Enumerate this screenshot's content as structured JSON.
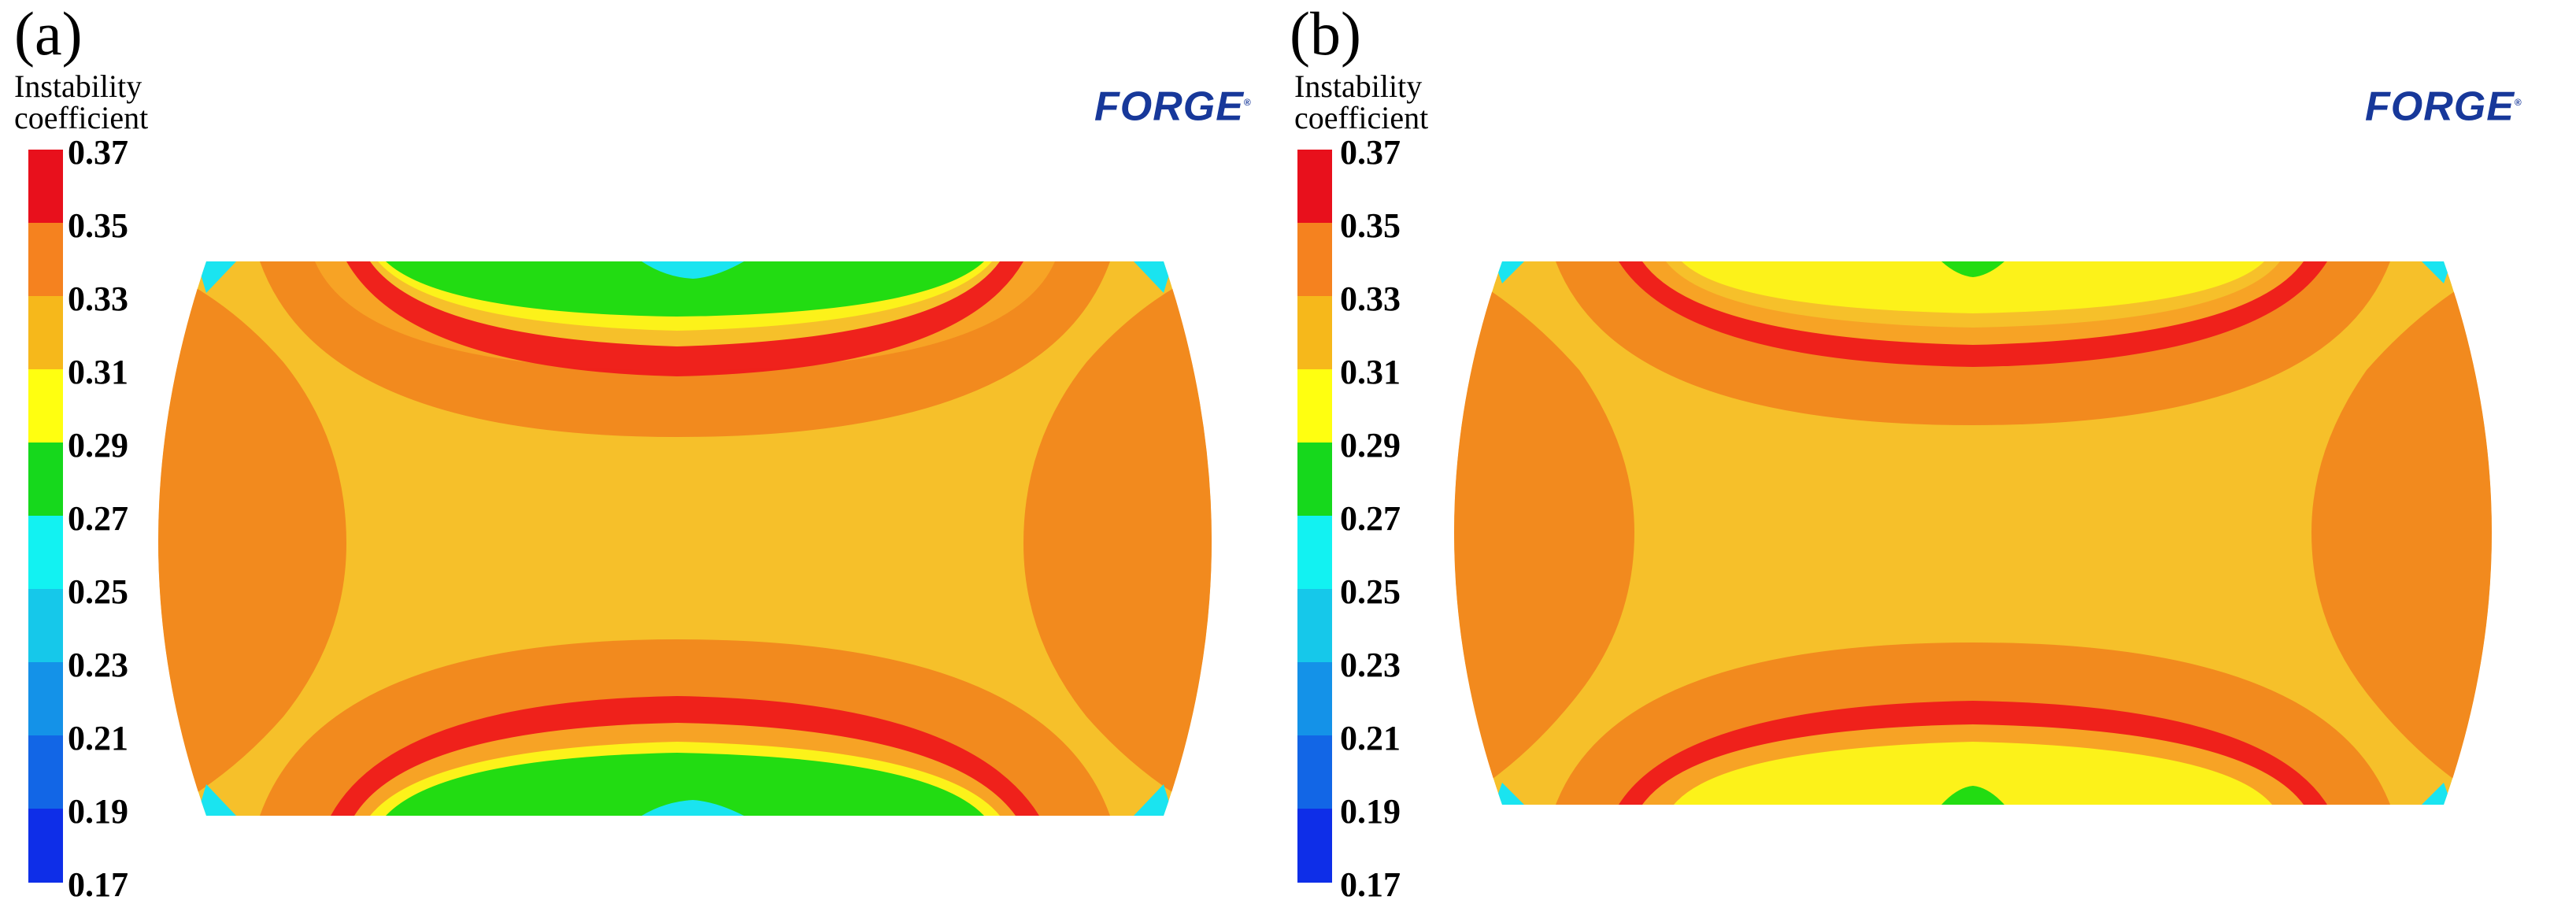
{
  "panels": [
    {
      "label": "(a)",
      "legend_title_line1": "Instability",
      "legend_title_line2": "coefficient",
      "logo": "FORGE",
      "logo_mark": "®"
    },
    {
      "label": "(b)",
      "legend_title_line1": "Instability",
      "legend_title_line2": "coefficient",
      "logo": "FORGE",
      "logo_mark": "®"
    }
  ],
  "legend": {
    "ticks": [
      "0.37",
      "0.35",
      "0.33",
      "0.31",
      "0.29",
      "0.27",
      "0.25",
      "0.23",
      "0.21",
      "0.19",
      "0.17"
    ],
    "colors": [
      "#e8101c",
      "#f5821f",
      "#f6b81b",
      "#ffff10",
      "#16d81c",
      "#12f2f2",
      "#16c8ea",
      "#1492e8",
      "#1266e6",
      "#0e2ee8"
    ]
  },
  "palette": {
    "red": "#ee1b1b",
    "orange": "#f28a1e",
    "light_orange": "#f7a325",
    "yellow_orange": "#f6c02a",
    "yellow": "#fcf21a",
    "green": "#22dc12",
    "cyan": "#1ae4f0"
  }
}
